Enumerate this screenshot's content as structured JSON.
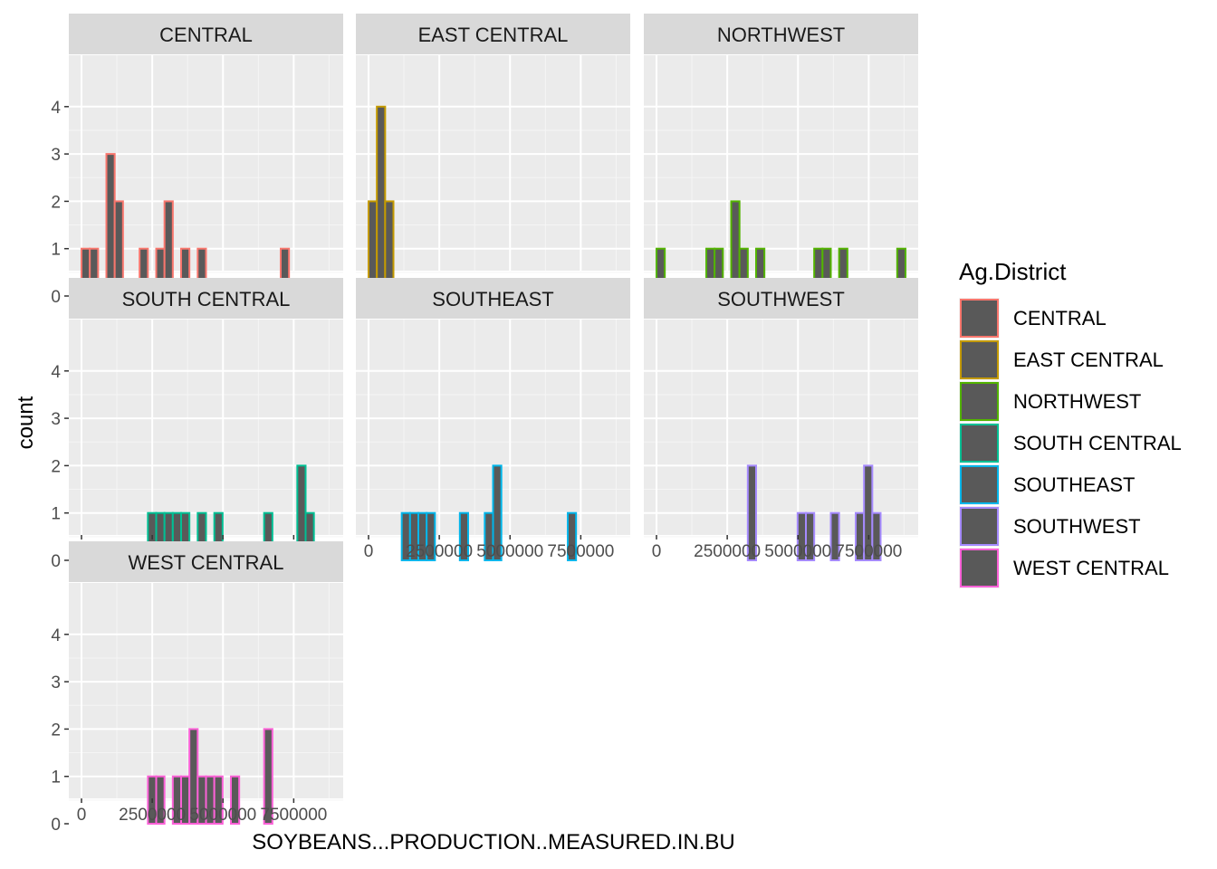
{
  "chart_data": {
    "type": "bar",
    "subtype": "histogram-faceted",
    "xlabel": "SOYBEANS...PRODUCTION..MEASURED.IN.BU",
    "ylabel": "count",
    "xlim": [
      0,
      8800000
    ],
    "ylim": [
      0,
      4
    ],
    "x_ticks": [
      0,
      2500000,
      5000000,
      7500000
    ],
    "x_tick_labels": [
      "0",
      "2500000",
      "5000000",
      "7500000"
    ],
    "y_ticks": [
      0,
      1,
      2,
      3,
      4
    ],
    "y_tick_labels": [
      "0",
      "1",
      "2",
      "3",
      "4"
    ],
    "bins": 30,
    "bar_fill": "#595959",
    "panel_background": "#ebebeb",
    "grid": true,
    "legend": {
      "title": "Ag.District",
      "placement": "right",
      "entries": [
        "CENTRAL",
        "EAST CENTRAL",
        "NORTHWEST",
        "SOUTH CENTRAL",
        "SOUTHEAST",
        "SOUTHWEST",
        "WEST CENTRAL"
      ]
    },
    "series": [
      {
        "name": "CENTRAL",
        "color": "#F8766D",
        "counts": [
          1,
          1,
          0,
          3,
          2,
          0,
          0,
          1,
          0,
          1,
          2,
          0,
          1,
          0,
          1,
          0,
          0,
          0,
          0,
          0,
          0,
          0,
          0,
          0,
          1,
          0,
          0,
          0,
          0,
          0
        ]
      },
      {
        "name": "EAST CENTRAL",
        "color": "#C49A00",
        "counts": [
          2,
          4,
          2,
          0,
          0,
          0,
          0,
          0,
          0,
          0,
          0,
          0,
          0,
          0,
          0,
          0,
          0,
          0,
          0,
          0,
          0,
          0,
          0,
          0,
          0,
          0,
          0,
          0,
          0,
          0
        ]
      },
      {
        "name": "NORTHWEST",
        "color": "#53B400",
        "counts": [
          1,
          0,
          0,
          0,
          0,
          0,
          1,
          1,
          0,
          2,
          1,
          0,
          1,
          0,
          0,
          0,
          0,
          0,
          0,
          1,
          1,
          0,
          1,
          0,
          0,
          0,
          0,
          0,
          0,
          1
        ]
      },
      {
        "name": "SOUTH CENTRAL",
        "color": "#00C094",
        "counts": [
          0,
          0,
          0,
          0,
          0,
          0,
          0,
          0,
          1,
          1,
          1,
          1,
          1,
          0,
          1,
          0,
          1,
          0,
          0,
          0,
          0,
          0,
          1,
          0,
          0,
          0,
          2,
          1,
          0,
          0
        ]
      },
      {
        "name": "SOUTHEAST",
        "color": "#00B6EB",
        "counts": [
          0,
          0,
          0,
          0,
          1,
          1,
          1,
          1,
          0,
          0,
          0,
          1,
          0,
          0,
          1,
          2,
          0,
          0,
          0,
          0,
          0,
          0,
          0,
          0,
          1,
          0,
          0,
          0,
          0,
          0
        ]
      },
      {
        "name": "SOUTHWEST",
        "color": "#A58AFF",
        "counts": [
          0,
          0,
          0,
          0,
          0,
          0,
          0,
          0,
          0,
          0,
          0,
          2,
          0,
          0,
          0,
          0,
          0,
          1,
          1,
          0,
          0,
          1,
          0,
          0,
          1,
          2,
          1,
          0,
          0,
          0
        ]
      },
      {
        "name": "WEST CENTRAL",
        "color": "#FB61D7",
        "counts": [
          0,
          0,
          0,
          0,
          0,
          0,
          0,
          0,
          1,
          1,
          0,
          1,
          1,
          2,
          1,
          1,
          1,
          0,
          1,
          0,
          0,
          0,
          2,
          0,
          0,
          0,
          0,
          0,
          0,
          0
        ]
      }
    ]
  }
}
